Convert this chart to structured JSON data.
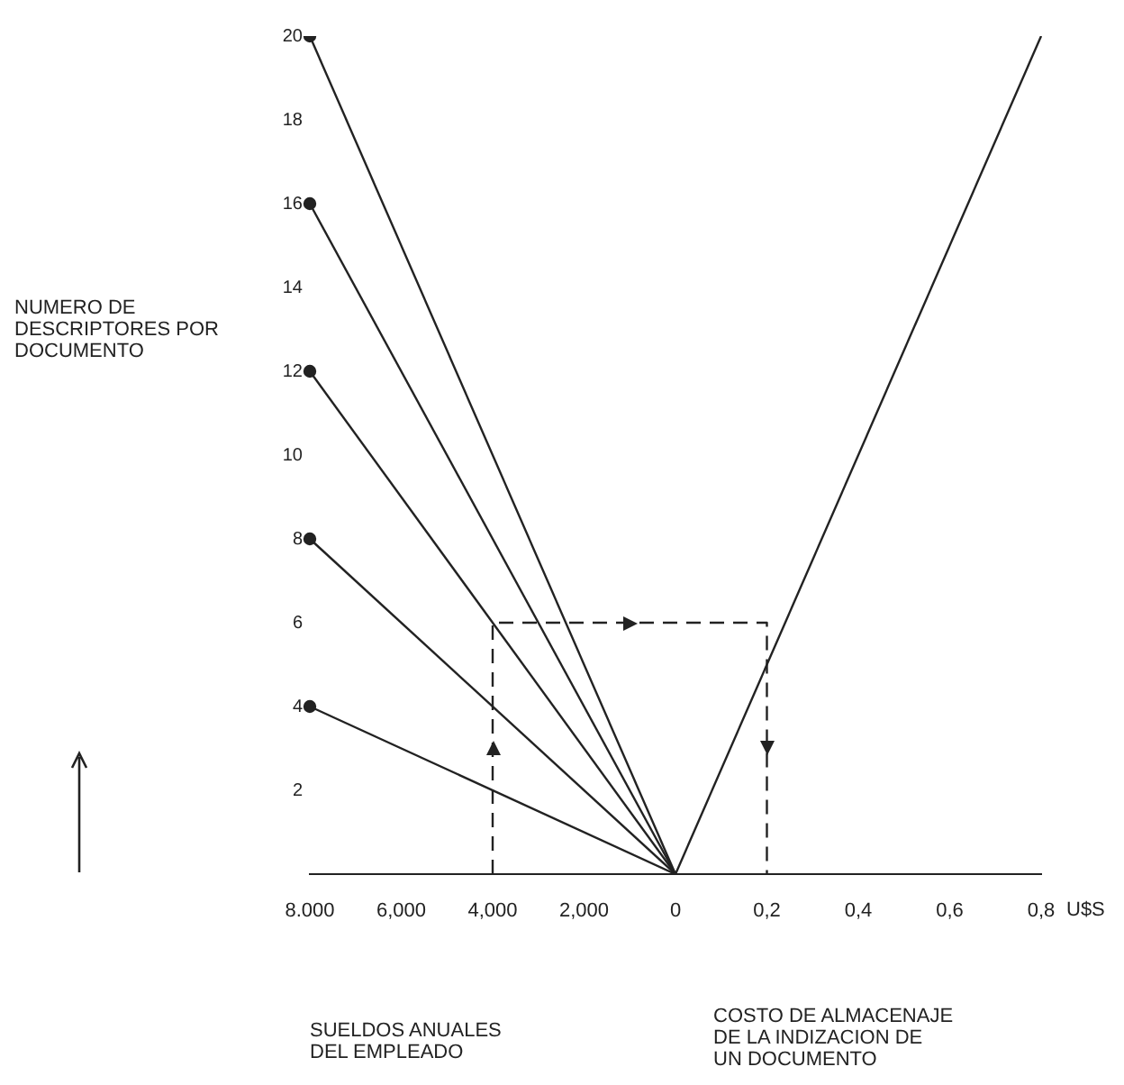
{
  "chart_data": {
    "type": "line",
    "categories": [
      "8.000",
      "6,000",
      "4,000",
      "2,000",
      "0",
      "0,2",
      "0,4",
      "0,6",
      "0,8"
    ],
    "xlabel": "U$S",
    "ylabel": "NUMERO DE DESCRIPTORES POR DOCUMENTO",
    "series": [
      {
        "color": "#222222",
        "values": [
          20,
          null,
          null,
          null,
          0,
          null,
          null,
          null,
          null
        ]
      },
      {
        "color": "#222222",
        "values": [
          16,
          null,
          null,
          null,
          0,
          null,
          null,
          null,
          null
        ]
      },
      {
        "color": "#222222",
        "values": [
          12,
          null,
          null,
          null,
          0,
          null,
          null,
          null,
          null
        ]
      },
      {
        "color": "#222222",
        "values": [
          8,
          null,
          null,
          null,
          0,
          null,
          null,
          null,
          null
        ]
      },
      {
        "color": "#222222",
        "values": [
          4,
          null,
          null,
          null,
          0,
          null,
          null,
          null,
          null
        ]
      },
      {
        "color": "#222222",
        "marker": "none",
        "values": [
          null,
          null,
          null,
          null,
          0,
          null,
          null,
          null,
          20
        ]
      },
      {
        "color": "#222222",
        "marker": "none",
        "line_style": "dashed",
        "x": [
          "4,000",
          "4,000",
          "0,2",
          "0,2"
        ],
        "values": [
          0,
          6,
          6,
          0
        ]
      }
    ],
    "ylim": [
      0,
      20
    ],
    "yticks": [
      2,
      4,
      6,
      8,
      10,
      12,
      14,
      16,
      18,
      20
    ],
    "marker": "circle",
    "line_style": "solid",
    "grid": false,
    "legend": false,
    "annotations": [
      "SUELDOS ANUALES DEL EMPLEADO",
      "COSTO DE ALMACENAJE DE LA INDIZACION DE UN DOCUMENTO"
    ]
  }
}
